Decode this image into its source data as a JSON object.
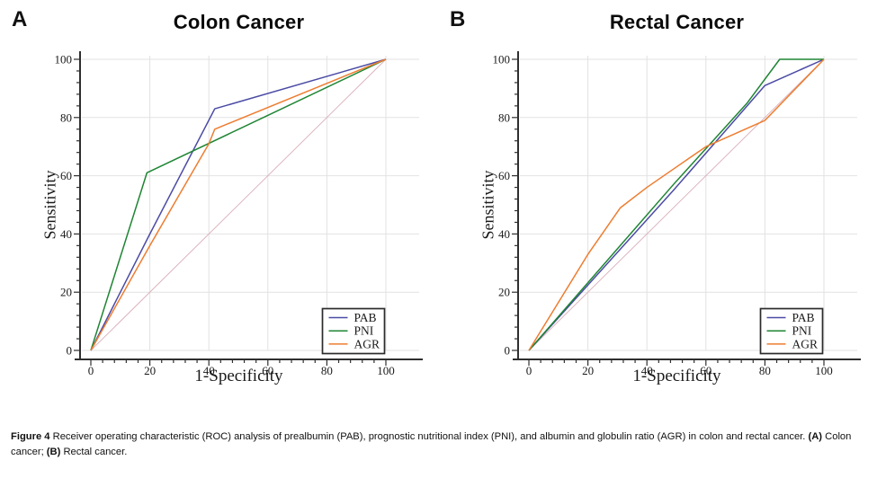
{
  "figure": {
    "caption_segments": [
      {
        "text": "Figure 4 ",
        "bold": true
      },
      {
        "text": "Receiver operating characteristic (ROC) analysis of prealbumin (PAB), prognostic nutritional index (PNI), and albumin and globulin ratio (AGR) in colon and rectal cancer. ",
        "bold": false
      },
      {
        "text": "(A) ",
        "bold": true
      },
      {
        "text": "Colon cancer; ",
        "bold": false
      },
      {
        "text": "(B) ",
        "bold": true
      },
      {
        "text": "Rectal cancer.",
        "bold": false
      }
    ]
  },
  "colors": {
    "pab": "#4b4ba5",
    "pni": "#1e8533",
    "agr": "#ed7d31",
    "reference_line": "#d9aeb9",
    "grid": "#e2e2e2",
    "axis": "#2f2f2f",
    "legend_border": "#2b2b2b",
    "background": "#ffffff"
  },
  "chart_data": [
    {
      "type": "line",
      "panel_label": "A",
      "title": "Colon Cancer",
      "xlabel": "1-Specificity",
      "ylabel": "Sensitivity",
      "xlim": [
        0,
        100
      ],
      "ylim": [
        0,
        100
      ],
      "xticks": [
        0,
        20,
        40,
        60,
        80,
        100
      ],
      "yticks": [
        0,
        20,
        40,
        60,
        80,
        100
      ],
      "minor_tick_step": 4,
      "grid": true,
      "legend_position": "lower-right",
      "legend_labels": [
        "PAB",
        "PNI",
        "AGR"
      ],
      "series": [
        {
          "name": "PAB",
          "color_key": "pab",
          "points": [
            [
              0,
              0
            ],
            [
              20,
              40
            ],
            [
              42,
              83
            ],
            [
              100,
              100
            ]
          ]
        },
        {
          "name": "PNI",
          "color_key": "pni",
          "points": [
            [
              0,
              0
            ],
            [
              19,
              61
            ],
            [
              100,
              100
            ]
          ]
        },
        {
          "name": "AGR",
          "color_key": "agr",
          "points": [
            [
              0,
              0
            ],
            [
              20,
              36
            ],
            [
              40,
              71
            ],
            [
              42,
              76
            ],
            [
              100,
              100
            ]
          ]
        }
      ],
      "reference_line": {
        "points": [
          [
            0,
            0
          ],
          [
            100,
            100
          ]
        ]
      }
    },
    {
      "type": "line",
      "panel_label": "B",
      "title": "Rectal Cancer",
      "xlabel": "1-Specificity",
      "ylabel": "Sensitivity",
      "xlim": [
        0,
        100
      ],
      "ylim": [
        0,
        100
      ],
      "xticks": [
        0,
        20,
        40,
        60,
        80,
        100
      ],
      "yticks": [
        0,
        20,
        40,
        60,
        80,
        100
      ],
      "minor_tick_step": 4,
      "grid": true,
      "legend_position": "lower-right",
      "legend_labels": [
        "PAB",
        "PNI",
        "AGR"
      ],
      "series": [
        {
          "name": "PAB",
          "color_key": "pab",
          "points": [
            [
              0,
              0
            ],
            [
              49,
              55
            ],
            [
              80,
              91
            ],
            [
              100,
              100
            ]
          ]
        },
        {
          "name": "PNI",
          "color_key": "pni",
          "points": [
            [
              0,
              0
            ],
            [
              49,
              57
            ],
            [
              74,
              85
            ],
            [
              85,
              100
            ],
            [
              100,
              100
            ]
          ]
        },
        {
          "name": "AGR",
          "color_key": "agr",
          "points": [
            [
              0,
              0
            ],
            [
              20,
              33
            ],
            [
              31,
              49
            ],
            [
              40,
              56
            ],
            [
              60,
              70
            ],
            [
              80,
              79
            ],
            [
              100,
              100
            ]
          ]
        }
      ],
      "reference_line": {
        "points": [
          [
            0,
            0
          ],
          [
            100,
            100
          ]
        ]
      }
    }
  ]
}
